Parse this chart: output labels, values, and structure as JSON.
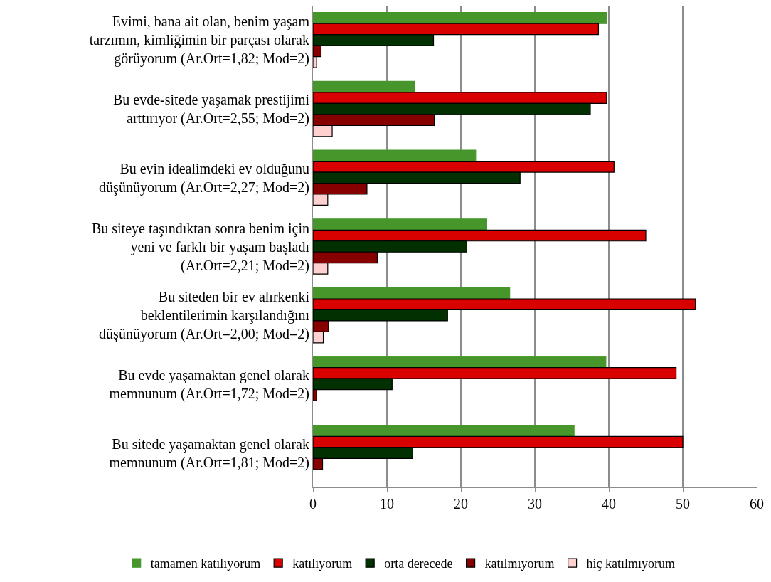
{
  "chart_data": {
    "type": "bar",
    "orientation": "horizontal",
    "categories": [
      "Evimi, bana ait olan, benim yaşam\ntarzımın, kimliğimin bir parçası olarak\ngörüyorum (Ar.Ort=1,82; Mod=2)",
      "Bu evde-sitede yaşamak prestijimi\narttırıyor (Ar.Ort=2,55; Mod=2)",
      "Bu evin idealimdeki ev olduğunu\ndüşünüyorum (Ar.Ort=2,27; Mod=2)",
      "Bu siteye taşındıktan sonra benim için\nyeni ve farklı bir yaşam başladı\n(Ar.Ort=2,21; Mod=2)",
      "Bu siteden bir ev alırkenki\nbeklentilerimin karşılandığını\ndüşünüyorum (Ar.Ort=2,00; Mod=2)",
      "Bu evde yaşamaktan genel olarak\nmemnunum (Ar.Ort=1,72; Mod=2)",
      "Bu sitede yaşamaktan genel olarak\nmemnunum (Ar.Ort=1,81; Mod=2)"
    ],
    "series": [
      {
        "name": "tamamen katılıyorum",
        "color": "#46962b",
        "values": [
          39.7,
          13.7,
          22.0,
          23.5,
          26.6,
          39.6,
          35.3
        ]
      },
      {
        "name": "katılıyorum",
        "color": "#d90000",
        "values": [
          38.6,
          39.7,
          40.7,
          45.0,
          51.7,
          49.1,
          50.0
        ]
      },
      {
        "name": "orta derecede",
        "color": "#033001",
        "values": [
          16.3,
          37.5,
          28.0,
          20.8,
          18.2,
          10.7,
          13.5
        ]
      },
      {
        "name": "katılmıyorum",
        "color": "#870000",
        "values": [
          1.1,
          16.4,
          7.3,
          8.7,
          2.1,
          0.5,
          1.3
        ]
      },
      {
        "name": "hiç katılmıyorum",
        "color": "#ffd0d0",
        "values": [
          0.5,
          2.6,
          2.0,
          2.0,
          1.4,
          null,
          null
        ]
      }
    ],
    "xlim": [
      0,
      60
    ],
    "xticks": [
      0,
      10,
      20,
      30,
      40,
      50,
      60
    ],
    "grid": "x",
    "legend": "bottom"
  }
}
